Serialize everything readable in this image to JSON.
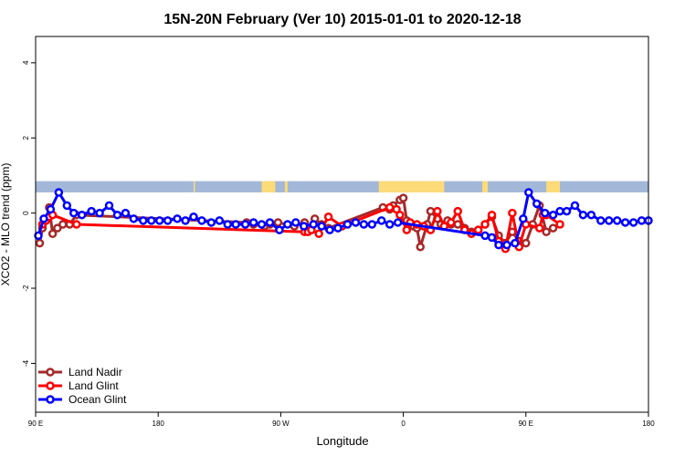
{
  "chart_data": {
    "type": "line",
    "title": "15N-20N February (Ver 10)   2015-01-01 to 2020-12-18",
    "xlabel": "Longitude",
    "ylabel": "XCO2 - MLO trend (ppm)",
    "xlim": [
      90,
      540
    ],
    "ylim": [
      -5.3,
      4.7
    ],
    "xtick_values": [
      90,
      180,
      270,
      360,
      450,
      540
    ],
    "xtick_labels": [
      "90 E",
      "180",
      "90 W",
      "0",
      "90 E",
      "180"
    ],
    "ytick_values": [
      -4,
      -2,
      0,
      2,
      4
    ],
    "ytick_labels": [
      "-4",
      "-2",
      "0",
      "2",
      "4"
    ],
    "legend_position": "bottom-left",
    "land_band": {
      "y_range": [
        0.55,
        0.85
      ],
      "ocean_color": "#a3b8d8",
      "land_color": "#fddb79",
      "land_spans": [
        [
          206,
          207
        ],
        [
          256,
          266
        ],
        [
          273,
          275
        ],
        [
          342,
          390
        ],
        [
          418,
          422
        ],
        [
          465,
          475
        ]
      ]
    },
    "series": [
      {
        "name": "Land Nadir",
        "color": "#a52a2a",
        "x": [
          93,
          95,
          97.5,
          100,
          102.5,
          106,
          110,
          115,
          120,
          245,
          250,
          258,
          262,
          268,
          280,
          287.5,
          290,
          295,
          300,
          305,
          345,
          350,
          352.5,
          357.5,
          360,
          362.5,
          365,
          367.5,
          370,
          372.5,
          377.5,
          380,
          385,
          387.5,
          392.5,
          395,
          400,
          405,
          410,
          415,
          420,
          425,
          430,
          435,
          440,
          445,
          450,
          455,
          460,
          465,
          470
        ],
        "y": [
          -0.8,
          -0.4,
          -0.2,
          0.15,
          -0.55,
          -0.4,
          -0.3,
          -0.3,
          -0.05,
          -0.25,
          -0.3,
          -0.35,
          -0.3,
          -0.25,
          -0.35,
          -0.25,
          -0.4,
          -0.15,
          -0.3,
          -0.4,
          0.15,
          0.1,
          0.2,
          0.35,
          0.4,
          -0.2,
          -0.3,
          -0.35,
          -0.4,
          -0.9,
          -0.3,
          0.05,
          -0.15,
          -0.3,
          -0.2,
          -0.3,
          -0.3,
          -0.4,
          -0.5,
          -0.45,
          -0.3,
          -0.1,
          -0.6,
          -0.8,
          -0.5,
          -0.75,
          -0.8,
          -0.3,
          0.2,
          -0.5,
          -0.4
        ]
      },
      {
        "name": "Land Glint",
        "color": "#ff0000",
        "x": [
          95,
          97.5,
          100,
          102.5,
          120,
          287.5,
          290,
          292.5,
          298,
          305,
          315,
          350,
          355,
          357.5,
          362.5,
          365,
          370,
          375,
          380,
          385,
          390,
          395,
          400,
          405,
          410,
          415,
          420,
          425,
          430,
          435,
          440,
          445,
          450,
          460,
          462.5,
          465,
          475
        ],
        "y": [
          -0.3,
          -0.2,
          -0.1,
          -0.05,
          -0.3,
          -0.5,
          -0.5,
          -0.45,
          -0.55,
          -0.1,
          -0.35,
          0.15,
          0.1,
          -0.05,
          -0.45,
          -0.25,
          -0.3,
          -0.35,
          -0.45,
          0.05,
          -0.35,
          -0.25,
          0.05,
          -0.45,
          -0.55,
          -0.45,
          -0.3,
          -0.05,
          -0.75,
          -0.95,
          0.0,
          -0.9,
          -0.3,
          -0.4,
          -0.05,
          -0.05,
          -0.3
        ]
      },
      {
        "name": "Ocean Glint",
        "color": "#0000ff",
        "x": [
          92,
          96,
          101,
          107,
          113,
          118,
          124,
          131,
          137,
          144,
          150,
          156,
          162,
          169,
          175,
          181,
          187,
          194,
          200,
          206,
          212,
          219,
          225,
          231,
          237,
          244,
          250,
          256,
          262,
          269,
          275,
          281,
          287,
          294,
          300,
          306,
          312,
          319,
          325,
          331,
          337,
          344,
          350,
          356,
          420,
          425,
          430,
          436,
          442,
          448,
          452,
          458,
          464,
          470,
          475,
          480,
          486,
          492,
          498,
          505,
          511,
          517,
          523,
          529,
          535,
          540
        ],
        "y": [
          -0.6,
          -0.15,
          0.1,
          0.55,
          0.2,
          0.0,
          -0.05,
          0.05,
          0.0,
          0.2,
          -0.05,
          0.0,
          -0.15,
          -0.2,
          -0.2,
          -0.2,
          -0.2,
          -0.15,
          -0.2,
          -0.1,
          -0.2,
          -0.25,
          -0.2,
          -0.3,
          -0.3,
          -0.3,
          -0.25,
          -0.3,
          -0.25,
          -0.45,
          -0.3,
          -0.25,
          -0.35,
          -0.3,
          -0.35,
          -0.45,
          -0.4,
          -0.3,
          -0.25,
          -0.3,
          -0.3,
          -0.2,
          -0.3,
          -0.25,
          -0.6,
          -0.65,
          -0.85,
          -0.85,
          -0.8,
          -0.15,
          0.55,
          0.25,
          0.0,
          -0.05,
          0.05,
          0.05,
          0.2,
          -0.05,
          -0.05,
          -0.2,
          -0.2,
          -0.2,
          -0.25,
          -0.25,
          -0.2,
          -0.2
        ]
      }
    ]
  }
}
